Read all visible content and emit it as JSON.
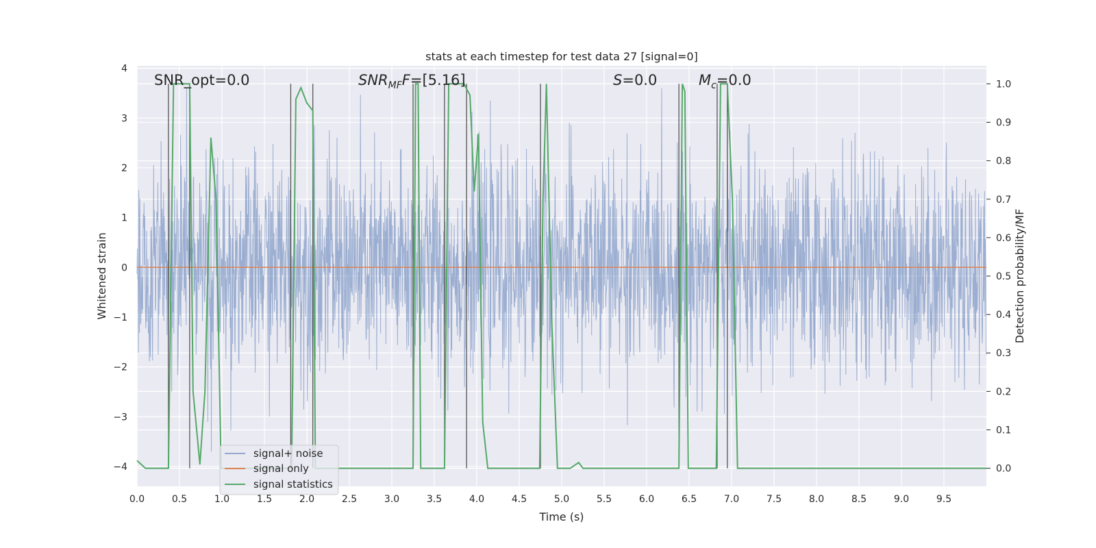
{
  "chart_data": {
    "type": "line",
    "title": "stats at each timestep for test data 27 [signal=0]",
    "xlabel": "Time (s)",
    "ylabel": "Whitened strain",
    "ylabel_right": "Detection probability/MF",
    "xlim": [
      0.0,
      10.0
    ],
    "ylim": [
      -4.4,
      4.05
    ],
    "ylim_right": [
      -0.047,
      1.047
    ],
    "grid": true,
    "legend_position": "lower-left",
    "x_ticks": [
      "0.0",
      "0.5",
      "1.0",
      "1.5",
      "2.0",
      "2.5",
      "3.0",
      "3.5",
      "4.0",
      "4.5",
      "5.0",
      "5.5",
      "6.0",
      "6.5",
      "7.0",
      "7.5",
      "8.0",
      "8.5",
      "9.0",
      "9.5"
    ],
    "y_ticks": [
      "4",
      "3",
      "2",
      "1",
      "0",
      "−1",
      "−2",
      "−3",
      "−4"
    ],
    "y_ticks_right": [
      "1.0",
      "0.9",
      "0.8",
      "0.7",
      "0.6",
      "0.5",
      "0.4",
      "0.3",
      "0.2",
      "0.1",
      "0.0"
    ],
    "annotations": {
      "snr_opt": "SNR_opt=0.0",
      "snr_mf_main": "SNR",
      "snr_mf_sub": "MF",
      "snr_mf_tail": "=[5.16]",
      "s_main": "S",
      "s_tail": "=0.0",
      "mc_main": "M",
      "mc_sub": "c",
      "mc_tail": "=0.0"
    },
    "series": [
      {
        "name": "signal+ noise",
        "color": "#4c72b0",
        "description_values": "noise band approximately between -2 and 2 with spikes up to about 3.6 and down to about -3.7",
        "approx_range": [
          -3.7,
          3.6
        ]
      },
      {
        "name": "signal only",
        "color": "#dd8452",
        "x": [
          0.0,
          10.0
        ],
        "y": [
          0.0,
          0.0
        ]
      },
      {
        "name": "signal statistics",
        "color": "#55a868",
        "axis": "right",
        "x": [
          0.0,
          0.1,
          0.2,
          0.37,
          0.43,
          0.48,
          0.55,
          0.62,
          0.66,
          0.74,
          0.8,
          0.87,
          0.93,
          0.99,
          1.1,
          1.2,
          1.3,
          1.6,
          1.82,
          1.87,
          1.93,
          2.0,
          2.07,
          2.1,
          2.3,
          2.6,
          3.0,
          3.25,
          3.28,
          3.31,
          3.34,
          3.5,
          3.62,
          3.67,
          3.75,
          3.85,
          3.92,
          3.97,
          4.02,
          4.07,
          4.13,
          4.3,
          4.5,
          4.74,
          4.78,
          4.82,
          4.88,
          4.95,
          5.02,
          5.1,
          5.2,
          5.25,
          5.5,
          6.0,
          6.38,
          6.42,
          6.45,
          6.49,
          6.55,
          6.75,
          6.82,
          6.87,
          6.95,
          7.01,
          7.07,
          7.5,
          8.0,
          9.0,
          10.0
        ],
        "y": [
          0.02,
          0.0,
          0.0,
          0.0,
          1.0,
          1.0,
          1.0,
          1.0,
          0.2,
          0.01,
          0.2,
          0.86,
          0.7,
          0.0,
          0.0,
          0.0,
          0.0,
          0.0,
          0.0,
          0.96,
          0.99,
          0.95,
          0.93,
          0.0,
          0.0,
          0.0,
          0.0,
          0.0,
          1.0,
          1.0,
          0.0,
          0.0,
          0.0,
          1.0,
          1.0,
          1.0,
          0.97,
          0.72,
          0.87,
          0.12,
          0.0,
          0.0,
          0.0,
          0.0,
          0.7,
          1.0,
          0.4,
          0.0,
          0.0,
          0.0,
          0.015,
          0.0,
          0.0,
          0.0,
          0.0,
          1.0,
          0.98,
          0.0,
          0.0,
          0.0,
          0.0,
          1.0,
          1.0,
          0.7,
          0.0,
          0.0,
          0.0,
          0.0,
          0.0
        ]
      }
    ],
    "vertical_markers_x": [
      0.37,
      0.62,
      1.81,
      2.07,
      3.25,
      3.62,
      3.88,
      4.75,
      6.38,
      6.83,
      6.95
    ]
  }
}
